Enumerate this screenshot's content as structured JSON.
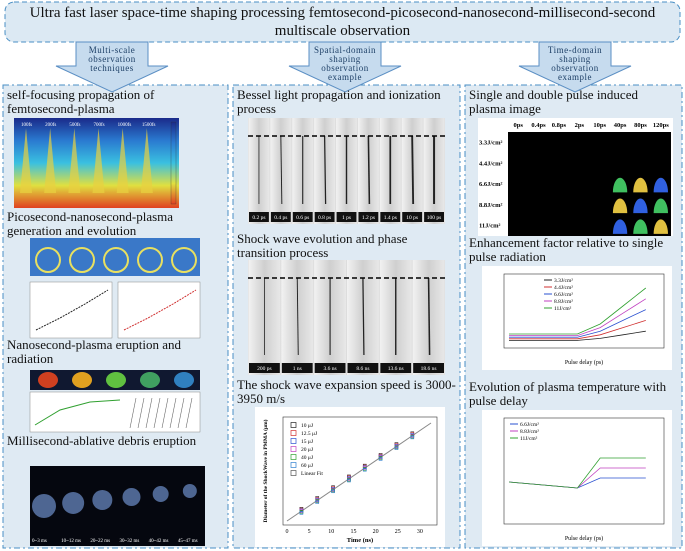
{
  "header": {
    "title": "Ultra fast laser space-time shaping processing femtosecond-picosecond-nanosecond-millisecond-second multiscale observation"
  },
  "arrows": [
    "Multi-scale observation techniques",
    "Spatial-domain shaping observation example",
    "Time-domain shaping observation example"
  ],
  "columns": [
    {
      "sections": [
        {
          "heading": "self-focusing propagation of femtosecond-plasma",
          "labels": [
            "100fs",
            "200fs",
            "500fs",
            "700fs",
            "1000fs",
            "1500fs"
          ]
        },
        {
          "heading": "Picosecond-nanosecond-plasma generation and evolution"
        },
        {
          "heading": "Nanosecond-plasma eruption and radiation"
        },
        {
          "heading": "Millisecond-ablative debris eruption",
          "labels": [
            "0~3 ms",
            "10~12 ms",
            "20~22 ms",
            "30~32 ms",
            "40~42 ms",
            "45~47 ms"
          ]
        }
      ]
    },
    {
      "sections": [
        {
          "heading": "Bessel light propagation and ionization process",
          "labels": [
            "0.2 ps",
            "0.4 ps",
            "0.6 ps",
            "0.8 ps",
            "1 ps",
            "1.2 ps",
            "1.4 ps",
            "10 ps",
            "100 ps"
          ]
        },
        {
          "heading": "Shock wave evolution and phase transition process",
          "labels": [
            "200 ps",
            "1 ns",
            "3.6 ns",
            "8.6 ns",
            "13.6 ns",
            "18.6 ns"
          ]
        },
        {
          "heading": "The shock wave expansion speed is 3000-3950 m/s",
          "legend": [
            "10 μJ",
            "12.5 μJ",
            "15 μJ",
            "20 μJ",
            "40 μJ",
            "60 μJ",
            "Linear Fit"
          ],
          "x_label": "Time (ns)",
          "y_label": "Diameter of the ShockWave in PMMA (μm)",
          "x_ticks": [
            "0",
            "5",
            "10",
            "15",
            "20",
            "25",
            "30"
          ]
        }
      ]
    },
    {
      "sections": [
        {
          "heading": "Single and double pulse induced plasma image",
          "col_labels": [
            "0ps",
            "0.4ps",
            "0.8ps",
            "2ps",
            "10ps",
            "40ps",
            "80ps",
            "120ps"
          ],
          "row_labels": [
            "3.3J/cm²",
            "4.4J/cm²",
            "6.6J/cm²",
            "8.8J/cm²",
            "11J/cm²"
          ]
        },
        {
          "heading": "Enhancement factor relative to single pulse radiation",
          "legend": [
            "3.3J/cm²",
            "4.4J/cm²",
            "6.6J/cm²",
            "8.8J/cm²",
            "11J/cm²"
          ],
          "x_label": "Pulse delay (ps)"
        },
        {
          "heading": "Evolution of plasma temperature with pulse delay",
          "legend": [
            "6.6J/cm²",
            "8.8J/cm²",
            "11J/cm²"
          ],
          "x_label": "Pulse delay (ps)"
        }
      ]
    }
  ]
}
